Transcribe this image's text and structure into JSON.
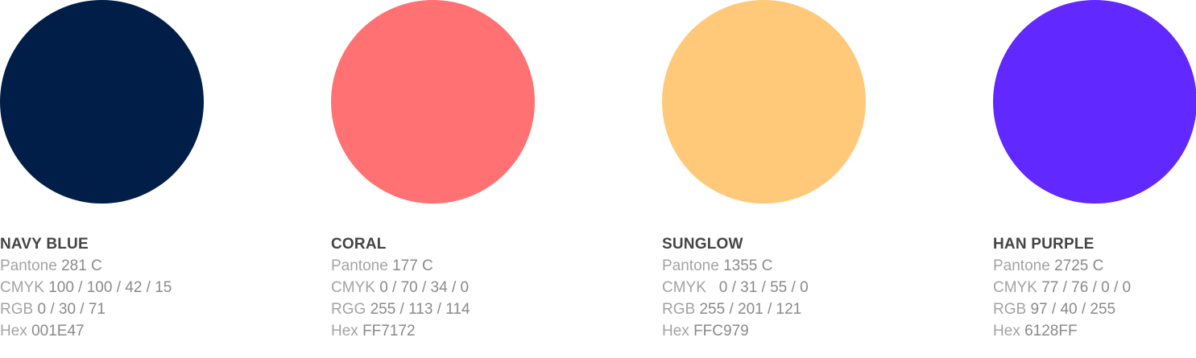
{
  "swatches": [
    {
      "name": "NAVY BLUE",
      "color": "#001E47",
      "pantone_label": "Pantone",
      "pantone_value": "281 C",
      "cmyk_label": "CMYK",
      "cmyk_value": "100 / 100 / 42 / 15",
      "rgb_label": "RGB",
      "rgb_value": "0 / 30 / 71",
      "hex_label": "Hex",
      "hex_value": "001E47"
    },
    {
      "name": "CORAL",
      "color": "#FF7172",
      "pantone_label": "Pantone",
      "pantone_value": "177 C",
      "cmyk_label": "CMYK",
      "cmyk_value": "0 / 70 / 34 / 0",
      "rgb_label": "RGG",
      "rgb_value": "255 / 113 / 114",
      "hex_label": "Hex",
      "hex_value": "FF7172"
    },
    {
      "name": "SUNGLOW",
      "color": "#FFC979",
      "pantone_label": "Pantone",
      "pantone_value": "1355 C",
      "cmyk_label": "CMYK",
      "cmyk_value": "  0 / 31 / 55 / 0",
      "rgb_label": "RGB",
      "rgb_value": "255 / 201 / 121",
      "hex_label": "Hex",
      "hex_value": "FFC979"
    },
    {
      "name": "HAN PURPLE",
      "color": "#6128FF",
      "pantone_label": "Pantone",
      "pantone_value": "2725 C",
      "cmyk_label": "CMYK",
      "cmyk_value": "77 / 76 / 0 / 0",
      "rgb_label": "RGB",
      "rgb_value": "97 / 40 / 255",
      "hex_label": "Hex",
      "hex_value": "6128FF"
    }
  ]
}
